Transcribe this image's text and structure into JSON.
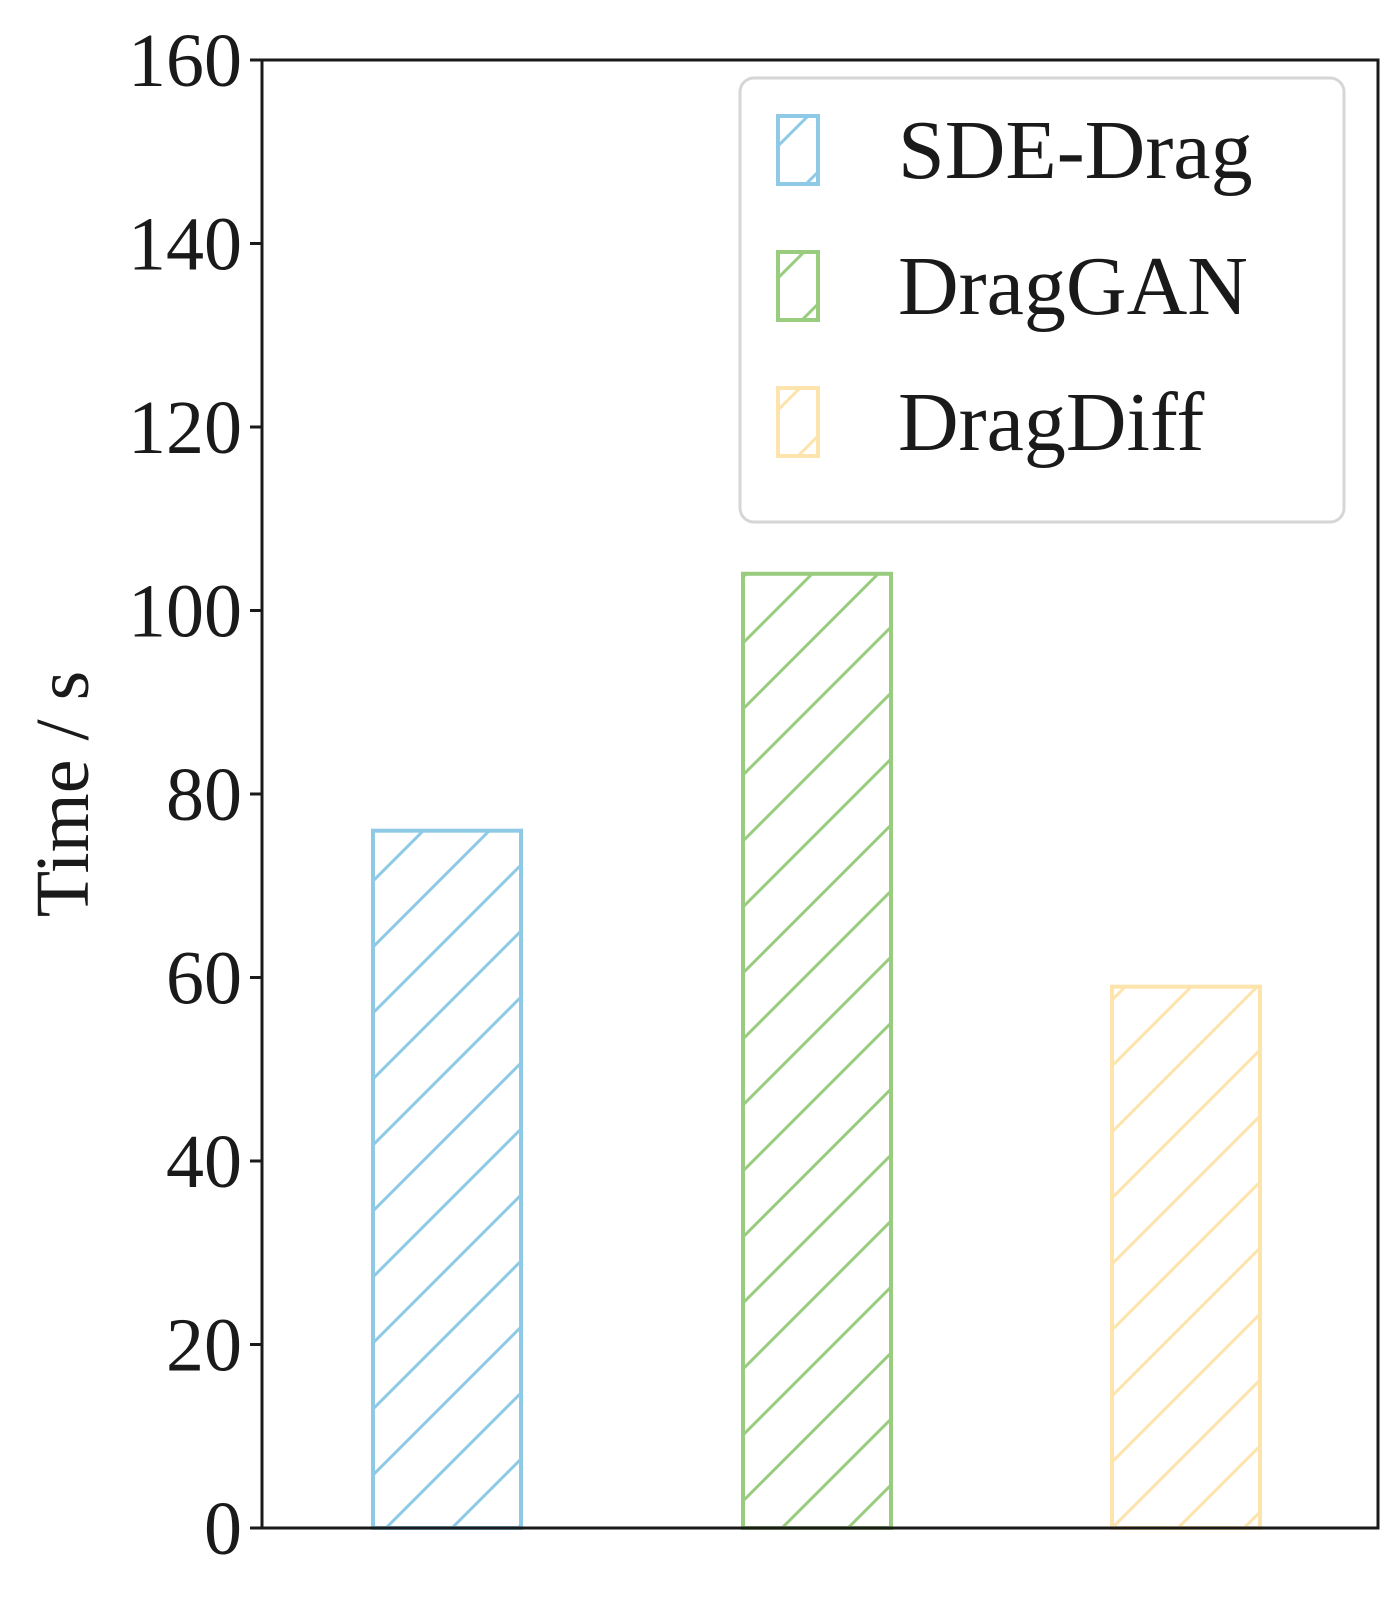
{
  "chart_data": {
    "type": "bar",
    "title": "",
    "xlabel": "",
    "ylabel": "Time / s",
    "ylim": [
      0,
      160
    ],
    "yticks": [
      0,
      20,
      40,
      60,
      80,
      100,
      120,
      140,
      160
    ],
    "grid": false,
    "legend_position": "top-right",
    "hatch": "diagonal",
    "series": [
      {
        "name": "SDE-Drag",
        "value": 76,
        "color": "#8ecae6"
      },
      {
        "name": "DragGAN",
        "value": 104,
        "color": "#99cc7f"
      },
      {
        "name": "DragDiff",
        "value": 59,
        "color": "#fde3ac"
      }
    ]
  }
}
